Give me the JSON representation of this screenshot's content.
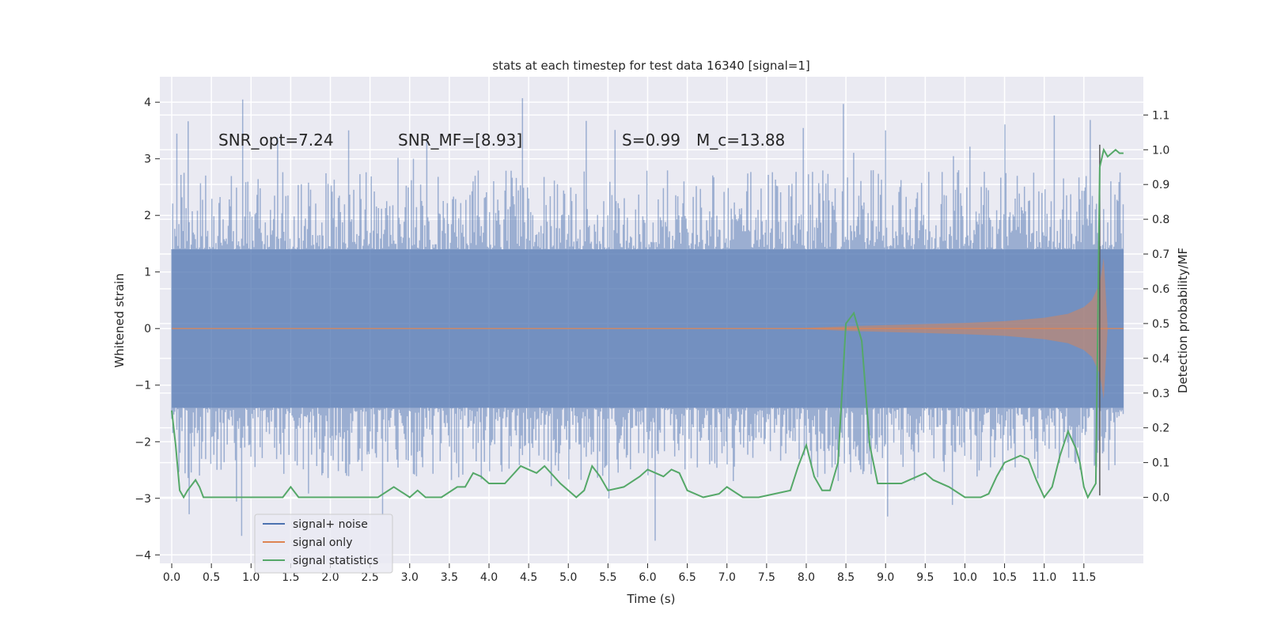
{
  "chart_data": {
    "type": "line",
    "title": "stats at each timestep for test data 16340 [signal=1]",
    "xlabel": "Time (s)",
    "ylabel": "Whitened strain",
    "y2label": "Detection probability/MF",
    "xlim": [
      -0.15,
      12.25
    ],
    "ylim": [
      -4.15,
      4.45
    ],
    "y2lim": [
      -0.19,
      1.21
    ],
    "xticks": [
      0.0,
      0.5,
      1.0,
      1.5,
      2.0,
      2.5,
      3.0,
      3.5,
      4.0,
      4.5,
      5.0,
      5.5,
      6.0,
      6.5,
      7.0,
      7.5,
      8.0,
      8.5,
      9.0,
      9.5,
      10.0,
      10.5,
      11.0,
      11.5
    ],
    "xtick_labels": [
      "0.0",
      "0.5",
      "1.0",
      "1.5",
      "2.0",
      "2.5",
      "3.0",
      "3.5",
      "4.0",
      "4.5",
      "5.0",
      "5.5",
      "6.0",
      "6.5",
      "7.0",
      "7.5",
      "8.0",
      "8.5",
      "9.0",
      "9.5",
      "10.0",
      "10.5",
      "11.0",
      "11.5"
    ],
    "yticks": [
      -4,
      -3,
      -2,
      -1,
      0,
      1,
      2,
      3,
      4
    ],
    "ytick_labels": [
      "−4",
      "−3",
      "−2",
      "−1",
      "0",
      "1",
      "2",
      "3",
      "4"
    ],
    "y2ticks": [
      0.0,
      0.1,
      0.2,
      0.3,
      0.4,
      0.5,
      0.6,
      0.7,
      0.8,
      0.9,
      1.0,
      1.1
    ],
    "y2tick_labels": [
      "0.0",
      "0.1",
      "0.2",
      "0.3",
      "0.4",
      "0.5",
      "0.6",
      "0.7",
      "0.8",
      "0.9",
      "1.0",
      "1.1"
    ],
    "grid": true,
    "legend_position": "lower-left",
    "series": [
      {
        "name": "signal+ noise",
        "color": "#4c72b0",
        "axis": "left",
        "x_range": [
          0.0,
          12.0
        ],
        "description_envelope": {
          "core": [
            -1.4,
            1.4
          ],
          "spikes_max": 4.1,
          "spikes_min": -3.8
        }
      },
      {
        "name": "signal only",
        "color": "#dd8452",
        "axis": "left",
        "x_range": [
          0.0,
          12.0
        ],
        "envelope": {
          "x": [
            7.8,
            8.5,
            9.0,
            9.5,
            10.0,
            10.5,
            11.0,
            11.3,
            11.5,
            11.6,
            11.7,
            11.75,
            11.8,
            12.0
          ],
          "amplitude": [
            0.0,
            0.04,
            0.06,
            0.08,
            0.1,
            0.13,
            0.19,
            0.26,
            0.38,
            0.5,
            0.8,
            1.25,
            0.0,
            0.0
          ]
        }
      },
      {
        "name": "signal statistics",
        "color": "#55a868",
        "axis": "right",
        "x": [
          0.0,
          0.05,
          0.1,
          0.15,
          0.2,
          0.3,
          0.35,
          0.4,
          0.5,
          0.6,
          0.8,
          1.0,
          1.2,
          1.4,
          1.5,
          1.6,
          1.8,
          2.0,
          2.3,
          2.6,
          2.8,
          3.0,
          3.1,
          3.2,
          3.4,
          3.6,
          3.7,
          3.8,
          3.9,
          4.0,
          4.2,
          4.4,
          4.5,
          4.6,
          4.7,
          4.9,
          5.1,
          5.2,
          5.3,
          5.4,
          5.5,
          5.7,
          5.9,
          6.0,
          6.1,
          6.2,
          6.3,
          6.4,
          6.5,
          6.7,
          6.9,
          7.0,
          7.2,
          7.4,
          7.6,
          7.8,
          7.9,
          8.0,
          8.1,
          8.2,
          8.3,
          8.4,
          8.5,
          8.6,
          8.7,
          8.8,
          8.9,
          9.0,
          9.2,
          9.4,
          9.5,
          9.6,
          9.8,
          10.0,
          10.2,
          10.3,
          10.4,
          10.5,
          10.7,
          10.8,
          10.9,
          11.0,
          11.1,
          11.2,
          11.3,
          11.4,
          11.45,
          11.5,
          11.55,
          11.6,
          11.65,
          11.7,
          11.75,
          11.8,
          11.85,
          11.9,
          11.95,
          12.0
        ],
        "values": [
          0.25,
          0.15,
          0.02,
          0.0,
          0.02,
          0.05,
          0.03,
          0.0,
          0.0,
          0.0,
          0.0,
          0.0,
          0.0,
          0.0,
          0.03,
          0.0,
          0.0,
          0.0,
          0.0,
          0.0,
          0.03,
          0.0,
          0.02,
          0.0,
          0.0,
          0.03,
          0.03,
          0.07,
          0.06,
          0.04,
          0.04,
          0.09,
          0.08,
          0.07,
          0.09,
          0.04,
          0.0,
          0.02,
          0.09,
          0.06,
          0.02,
          0.03,
          0.06,
          0.08,
          0.07,
          0.06,
          0.08,
          0.07,
          0.02,
          0.0,
          0.01,
          0.03,
          0.0,
          0.0,
          0.01,
          0.02,
          0.09,
          0.15,
          0.06,
          0.02,
          0.02,
          0.1,
          0.5,
          0.53,
          0.45,
          0.15,
          0.04,
          0.04,
          0.04,
          0.06,
          0.07,
          0.05,
          0.03,
          0.0,
          0.0,
          0.01,
          0.06,
          0.1,
          0.12,
          0.11,
          0.05,
          0.0,
          0.03,
          0.12,
          0.19,
          0.14,
          0.1,
          0.03,
          0.0,
          0.02,
          0.04,
          0.95,
          1.0,
          0.98,
          0.99,
          1.0,
          0.99,
          0.99
        ]
      }
    ],
    "vertical_line": {
      "x": 11.7,
      "color": "#555555",
      "y_range": [
        -2.95,
        3.25
      ]
    },
    "annotations": {
      "snr_opt": "SNR_opt=7.24",
      "snr_mf": "SNR_MF=[8.93]",
      "s_value": "S=0.99",
      "mc_value": "M_c=13.88"
    }
  }
}
